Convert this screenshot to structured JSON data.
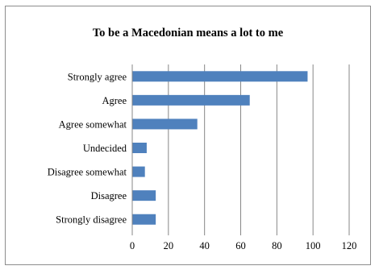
{
  "chart_data": {
    "type": "bar",
    "orientation": "horizontal",
    "title": "To be a Macedonian means a lot to me",
    "categories": [
      "Strongly agree",
      "Agree",
      "Agree somewhat",
      "Undecided",
      "Disagree somewhat",
      "Disagree",
      "Strongly disagree"
    ],
    "values": [
      97,
      65,
      36,
      8,
      7,
      13,
      13
    ],
    "xlim": [
      0,
      120
    ],
    "xticks": [
      0,
      20,
      40,
      60,
      80,
      100,
      120
    ],
    "xlabel": "",
    "ylabel": "",
    "grid": "vertical",
    "legend": "none",
    "bar_color": "#4f81bd",
    "grid_color": "#878787"
  }
}
